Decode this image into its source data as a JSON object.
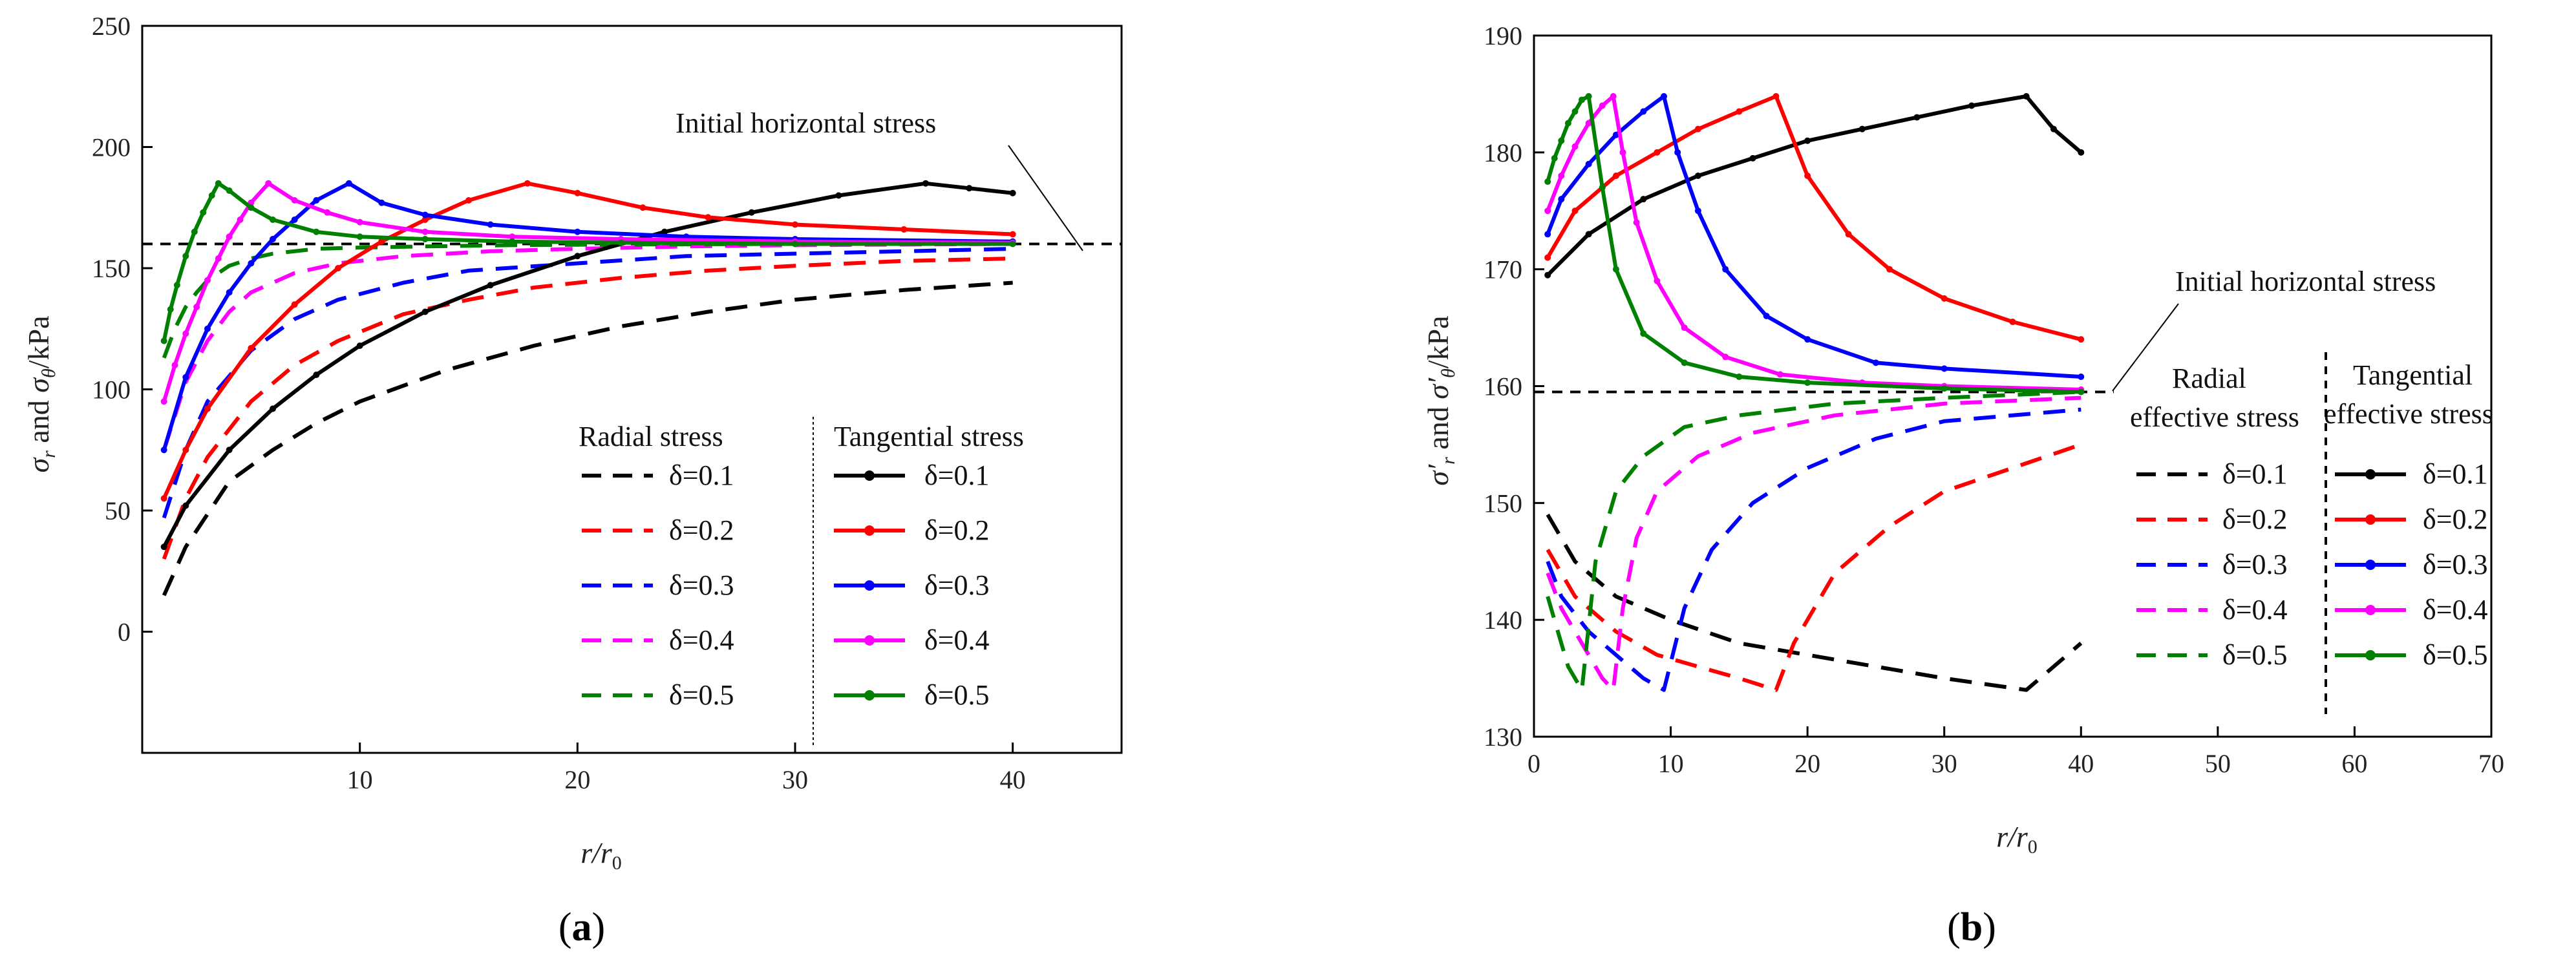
{
  "chart_data": [
    {
      "type": "line",
      "panel_label": "(a)",
      "xlabel": "r/r0",
      "ylabel": "σr and σθ/kPa",
      "xlim": [
        0,
        45
      ],
      "ylim": [
        -50,
        250
      ],
      "xticks": [
        10,
        20,
        30,
        40
      ],
      "yticks": [
        0,
        50,
        100,
        150,
        200,
        250
      ],
      "annotation": "Initial horizontal stress",
      "reference_value": 160,
      "legend": {
        "left_title": "Radial stress",
        "right_title": "Tangential stress",
        "labels": [
          "δ=0.1",
          "δ=0.2",
          "δ=0.3",
          "δ=0.4",
          "δ=0.5"
        ]
      },
      "colors": [
        "#000000",
        "#ff0000",
        "#0000ff",
        "#ff00ff",
        "#008000"
      ],
      "series": [
        {
          "name": "Radial δ=0.1",
          "style": "dashed",
          "color": "#000000",
          "x": [
            1,
            2,
            4,
            6,
            8,
            10,
            14,
            18,
            22,
            26,
            30,
            35,
            40
          ],
          "y": [
            15,
            35,
            62,
            75,
            86,
            95,
            108,
            118,
            126,
            132,
            137,
            141,
            144
          ]
        },
        {
          "name": "Radial δ=0.2",
          "style": "dashed",
          "color": "#ff0000",
          "x": [
            1,
            2,
            3,
            5,
            7,
            9,
            12,
            15,
            18,
            22,
            26,
            30,
            35,
            40
          ],
          "y": [
            30,
            55,
            72,
            95,
            110,
            120,
            131,
            137,
            142,
            146,
            149,
            151,
            153,
            154
          ]
        },
        {
          "name": "Radial δ=0.3",
          "style": "dashed",
          "color": "#0000ff",
          "x": [
            1,
            2,
            3,
            5,
            7,
            9,
            12,
            15,
            20,
            25,
            30,
            35,
            40
          ],
          "y": [
            47,
            75,
            95,
            116,
            129,
            137,
            144,
            149,
            152,
            155,
            156,
            157,
            158
          ]
        },
        {
          "name": "Radial δ=0.4",
          "style": "dashed",
          "color": "#ff00ff",
          "x": [
            1,
            2,
            3,
            4,
            5,
            7,
            9,
            12,
            16,
            20,
            25,
            30,
            40
          ],
          "y": [
            75,
            103,
            120,
            132,
            140,
            148,
            152,
            155,
            157,
            158,
            159,
            159.5,
            160
          ]
        },
        {
          "name": "Radial δ=0.5",
          "style": "dashed",
          "color": "#008000",
          "x": [
            1,
            1.5,
            2,
            2.5,
            3,
            4,
            5,
            6,
            8,
            10,
            13,
            17,
            22,
            30,
            40
          ],
          "y": [
            113,
            125,
            134,
            140,
            145,
            151,
            154,
            156,
            158,
            158.5,
            159,
            159.5,
            159.8,
            160,
            160
          ]
        },
        {
          "name": "Tangential δ=0.1",
          "style": "solid",
          "color": "#000000",
          "x": [
            1,
            2,
            4,
            6,
            8,
            10,
            13,
            16,
            20,
            24,
            28,
            32,
            36,
            38,
            40
          ],
          "y": [
            35,
            52,
            75,
            92,
            106,
            118,
            132,
            143,
            155,
            165,
            173,
            180,
            185,
            183,
            181
          ]
        },
        {
          "name": "Tangential δ=0.2",
          "style": "solid",
          "color": "#ff0000",
          "x": [
            1,
            2,
            3,
            5,
            7,
            9,
            11,
            13,
            15,
            17.7,
            20,
            23,
            26,
            30,
            35,
            40
          ],
          "y": [
            55,
            75,
            92,
            117,
            135,
            150,
            161,
            170,
            178,
            185,
            181,
            175,
            171,
            168,
            166,
            164
          ]
        },
        {
          "name": "Tangential δ=0.3",
          "style": "solid",
          "color": "#0000ff",
          "x": [
            1,
            2,
            3,
            4,
            5,
            6,
            7,
            8,
            9.5,
            11,
            13,
            16,
            20,
            25,
            30,
            40
          ],
          "y": [
            75,
            105,
            125,
            140,
            152,
            162,
            170,
            178,
            185,
            177,
            172,
            168,
            165,
            163,
            162,
            161
          ]
        },
        {
          "name": "Tangential δ=0.4",
          "style": "solid",
          "color": "#ff00ff",
          "x": [
            1,
            1.5,
            2,
            2.5,
            3,
            3.5,
            4,
            4.5,
            5,
            5.8,
            7,
            8.5,
            10,
            13,
            17,
            22,
            30,
            40
          ],
          "y": [
            95,
            110,
            123,
            134,
            145,
            154,
            163,
            170,
            177,
            185,
            178,
            173,
            169,
            165,
            163,
            162,
            161,
            160.5
          ]
        },
        {
          "name": "Tangential δ=0.5",
          "style": "solid",
          "color": "#008000",
          "x": [
            1,
            1.3,
            1.6,
            2,
            2.4,
            2.8,
            3.2,
            3.5,
            4,
            5,
            6,
            8,
            10,
            13,
            17,
            22,
            30,
            40
          ],
          "y": [
            120,
            133,
            143,
            155,
            165,
            173,
            180,
            185,
            182,
            175,
            170,
            165,
            163,
            162,
            161,
            160.5,
            160,
            160
          ]
        }
      ]
    },
    {
      "type": "line",
      "panel_label": "(b)",
      "xlabel": "r/r0",
      "ylabel": "σ′r and σ′θ/kPa",
      "xlim": [
        0,
        70
      ],
      "ylim": [
        130,
        190
      ],
      "xticks": [
        0,
        10,
        20,
        30,
        40,
        50,
        60,
        70
      ],
      "yticks": [
        130,
        140,
        150,
        160,
        170,
        180,
        190
      ],
      "annotation": "Initial horizontal stress",
      "reference_value": 159.5,
      "legend": {
        "left_title_line1": "Radial",
        "left_title_line2": "effective stress",
        "right_title_line1": "Tangential",
        "right_title_line2": "effective stress",
        "labels": [
          "δ=0.1",
          "δ=0.2",
          "δ=0.3",
          "δ=0.4",
          "δ=0.5"
        ]
      },
      "colors": [
        "#000000",
        "#ff0000",
        "#0000ff",
        "#ff00ff",
        "#008000"
      ],
      "series": [
        {
          "name": "Radial δ=0.1",
          "style": "dashed",
          "color": "#000000",
          "x": [
            1,
            3,
            6,
            10,
            15,
            20,
            25,
            30,
            36,
            38,
            40
          ],
          "y": [
            149,
            145,
            142,
            140,
            138,
            137,
            136,
            135,
            134,
            136,
            138
          ]
        },
        {
          "name": "Radial δ=0.2",
          "style": "dashed",
          "color": "#ff0000",
          "x": [
            1,
            3,
            6,
            9,
            12,
            15,
            17.7,
            19,
            22,
            26,
            30,
            35,
            40
          ],
          "y": [
            146,
            142,
            139,
            137,
            136,
            135,
            134,
            138,
            144,
            148,
            151,
            153,
            155
          ]
        },
        {
          "name": "Radial δ=0.3",
          "style": "dashed",
          "color": "#0000ff",
          "x": [
            1,
            2,
            4,
            6,
            8,
            9.5,
            11,
            13,
            16,
            20,
            25,
            30,
            40
          ],
          "y": [
            145,
            142,
            139,
            137,
            135,
            134,
            141,
            146,
            150,
            153,
            155.5,
            157,
            158
          ]
        },
        {
          "name": "Radial δ=0.4",
          "style": "dashed",
          "color": "#ff00ff",
          "x": [
            1,
            2,
            3,
            4,
            5,
            5.8,
            6.5,
            7.5,
            9,
            12,
            16,
            22,
            30,
            40
          ],
          "y": [
            144,
            141,
            139,
            137,
            135,
            134,
            141,
            147,
            151,
            154,
            156,
            157.5,
            158.5,
            159
          ]
        },
        {
          "name": "Radial δ=0.5",
          "style": "dashed",
          "color": "#008000",
          "x": [
            1,
            1.5,
            2,
            2.5,
            3,
            3.5,
            4.5,
            6,
            8,
            11,
            15,
            22,
            30,
            40
          ],
          "y": [
            142,
            140,
            138,
            136,
            135,
            134,
            145,
            151,
            154,
            156.5,
            157.5,
            158.5,
            159,
            159.5
          ]
        },
        {
          "name": "Tangential δ=0.1",
          "style": "solid",
          "color": "#000000",
          "x": [
            1,
            4,
            8,
            12,
            16,
            20,
            24,
            28,
            32,
            36,
            38,
            40
          ],
          "y": [
            169.5,
            173,
            176,
            178,
            179.5,
            181,
            182,
            183,
            184,
            184.8,
            182,
            180
          ]
        },
        {
          "name": "Tangential δ=0.2",
          "style": "solid",
          "color": "#ff0000",
          "x": [
            1,
            3,
            6,
            9,
            12,
            15,
            17.7,
            20,
            23,
            26,
            30,
            35,
            40
          ],
          "y": [
            171,
            175,
            178,
            180,
            182,
            183.5,
            184.8,
            178,
            173,
            170,
            167.5,
            165.5,
            164
          ]
        },
        {
          "name": "Tangential δ=0.3",
          "style": "solid",
          "color": "#0000ff",
          "x": [
            1,
            2,
            4,
            6,
            8,
            9.5,
            10.5,
            12,
            14,
            17,
            20,
            25,
            30,
            40
          ],
          "y": [
            173,
            176,
            179,
            181.5,
            183.5,
            184.8,
            180,
            175,
            170,
            166,
            164,
            162,
            161.5,
            160.8
          ]
        },
        {
          "name": "Tangential δ=0.4",
          "style": "solid",
          "color": "#ff00ff",
          "x": [
            1,
            2,
            3,
            4,
            5,
            5.8,
            6.5,
            7.5,
            9,
            11,
            14,
            18,
            24,
            30,
            40
          ],
          "y": [
            175,
            178,
            180.5,
            182.5,
            184,
            184.8,
            180,
            174,
            169,
            165,
            162.5,
            161,
            160.3,
            160,
            159.7
          ]
        },
        {
          "name": "Tangential δ=0.5",
          "style": "solid",
          "color": "#008000",
          "x": [
            1,
            1.5,
            2,
            2.5,
            3,
            3.5,
            4,
            5,
            6,
            8,
            11,
            15,
            20,
            30,
            40
          ],
          "y": [
            177.5,
            179.5,
            181,
            182.5,
            183.5,
            184.5,
            184.8,
            177,
            170,
            164.5,
            162,
            160.8,
            160.3,
            159.8,
            159.5
          ]
        }
      ]
    }
  ]
}
